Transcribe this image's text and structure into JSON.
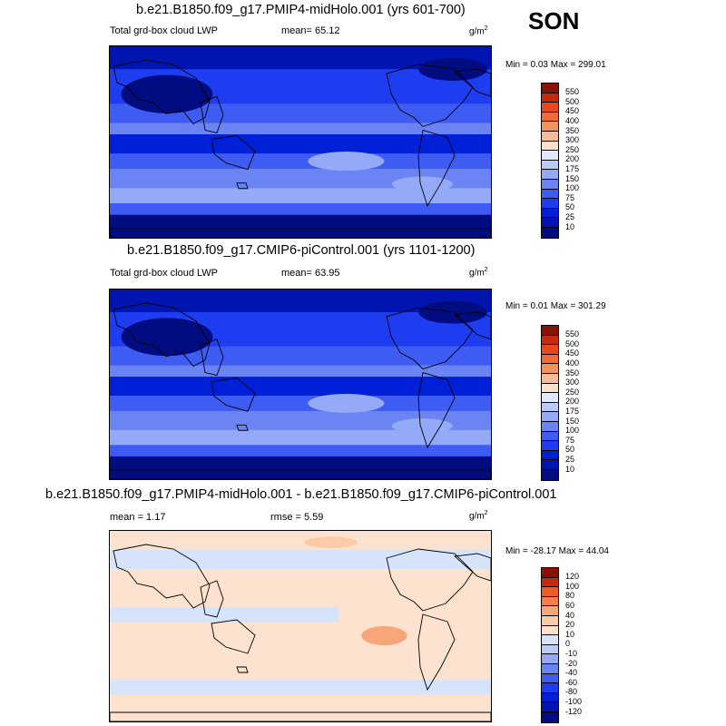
{
  "season": "SON",
  "colors": {
    "abs_levels": [
      "#000c80",
      "#0015b0",
      "#0020d8",
      "#1e3df0",
      "#3f5cf2",
      "#6a84f4",
      "#94aaf6",
      "#bccaf8",
      "#e2e8fb",
      "#fde0cc",
      "#f9bb95",
      "#f4925f",
      "#ee6a3a",
      "#e8481e",
      "#c42a0c",
      "#8a1204"
    ],
    "diff_levels": [
      "#000c80",
      "#0015b0",
      "#0020d8",
      "#1e3df0",
      "#3f5cf2",
      "#6a84f4",
      "#94aaf6",
      "#bccaf8",
      "#d6e4fb",
      "#fde3cf",
      "#fbcba8",
      "#f8a57a",
      "#f37f4f",
      "#ee5a2a",
      "#c42a0c",
      "#8a1204"
    ]
  },
  "panels": [
    {
      "title": "b.e21.B1850.f09_g17.PMIP4-midHolo.001 (yrs 601-700)",
      "left_label": "Total grd-box cloud LWP",
      "stat1": "mean=  65.12",
      "stat2": "",
      "unit_base": "g/m",
      "unit_exp": "2",
      "minmax": "Min =   0.03 Max = 299.01",
      "cbar_labels": [
        "550",
        "500",
        "450",
        "400",
        "350",
        "300",
        "250",
        "200",
        "175",
        "150",
        "100",
        "75",
        "50",
        "25",
        "10"
      ]
    },
    {
      "title": "b.e21.B1850.f09_g17.CMIP6-piControl.001 (yrs 1101-1200)",
      "left_label": "Total grd-box cloud LWP",
      "stat1": "mean=  63.95",
      "stat2": "",
      "unit_base": "g/m",
      "unit_exp": "2",
      "minmax": "Min =   0.01 Max = 301.29",
      "cbar_labels": [
        "550",
        "500",
        "450",
        "400",
        "350",
        "300",
        "250",
        "200",
        "175",
        "150",
        "100",
        "75",
        "50",
        "25",
        "10"
      ]
    },
    {
      "title": "b.e21.B1850.f09_g17.PMIP4-midHolo.001 - b.e21.B1850.f09_g17.CMIP6-piControl.001",
      "left_label": "mean =   1.17",
      "stat1": "rmse =   5.59",
      "stat2": "",
      "unit_base": "g/m",
      "unit_exp": "2",
      "minmax": "Min = -28.17 Max =  44.04",
      "cbar_labels": [
        "120",
        "100",
        "80",
        "60",
        "40",
        "20",
        "10",
        "0",
        "-10",
        "-20",
        "-40",
        "-60",
        "-80",
        "-100",
        "-120"
      ]
    }
  ],
  "chart_data": [
    {
      "type": "heatmap",
      "title": "b.e21.B1850.f09_g17.PMIP4-midHolo.001 (yrs 601-700)",
      "variable": "Total grd-box cloud LWP",
      "units": "g/m2",
      "mean": 65.12,
      "min": 0.03,
      "max": 299.01,
      "contour_levels": [
        10,
        25,
        50,
        75,
        100,
        150,
        175,
        200,
        250,
        300,
        350,
        400,
        450,
        500,
        550
      ]
    },
    {
      "type": "heatmap",
      "title": "b.e21.B1850.f09_g17.CMIP6-piControl.001 (yrs 1101-1200)",
      "variable": "Total grd-box cloud LWP",
      "units": "g/m2",
      "mean": 63.95,
      "min": 0.01,
      "max": 301.29,
      "contour_levels": [
        10,
        25,
        50,
        75,
        100,
        150,
        175,
        200,
        250,
        300,
        350,
        400,
        450,
        500,
        550
      ]
    },
    {
      "type": "heatmap",
      "title": "b.e21.B1850.f09_g17.PMIP4-midHolo.001 - b.e21.B1850.f09_g17.CMIP6-piControl.001",
      "units": "g/m2",
      "mean": 1.17,
      "rmse": 5.59,
      "min": -28.17,
      "max": 44.04,
      "contour_levels": [
        -120,
        -100,
        -80,
        -60,
        -40,
        -20,
        -10,
        0,
        10,
        20,
        40,
        60,
        80,
        100,
        120
      ]
    }
  ]
}
